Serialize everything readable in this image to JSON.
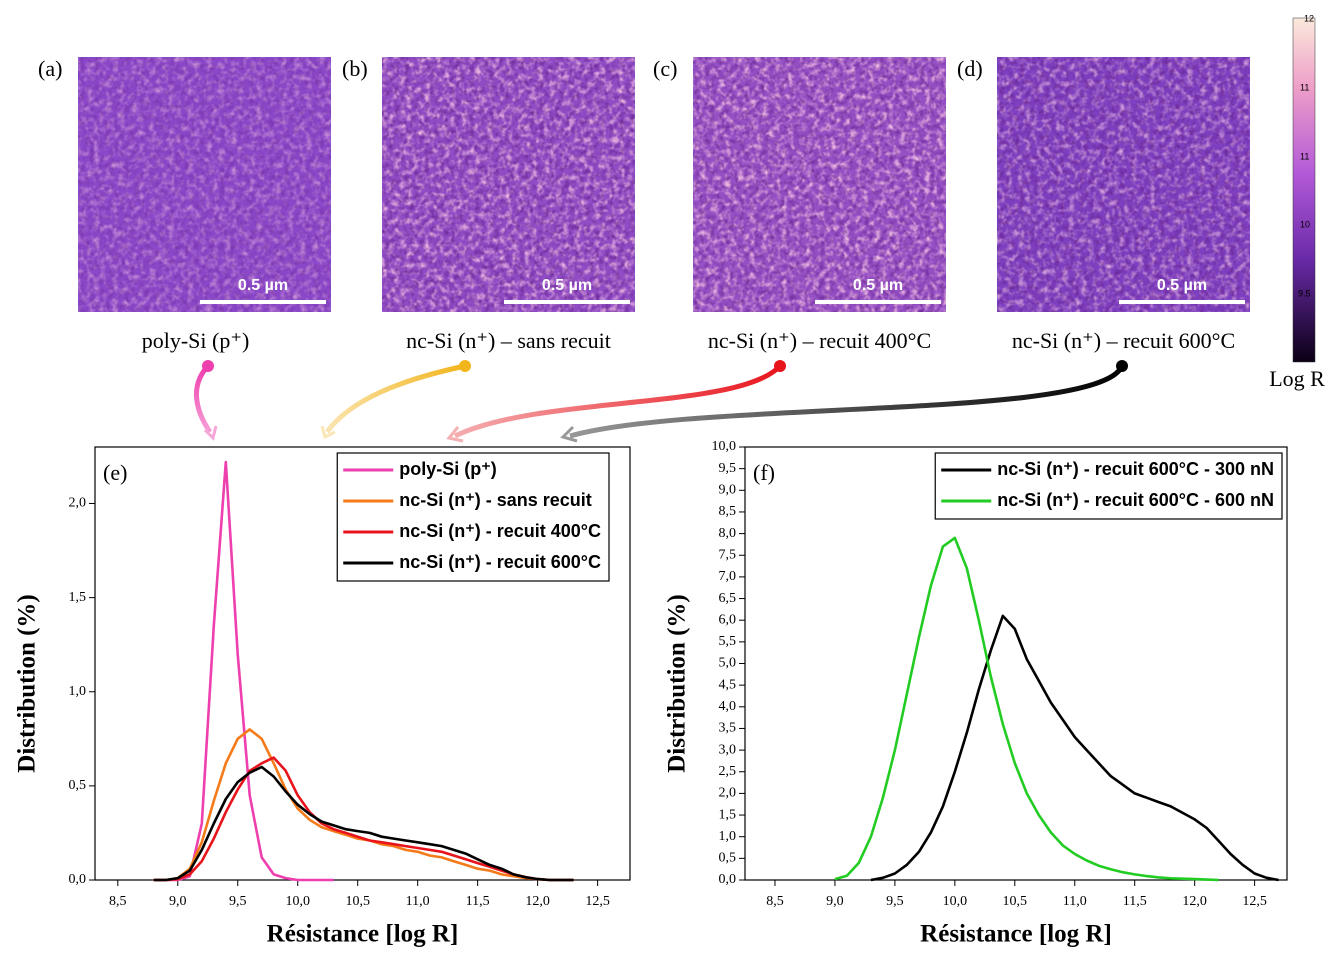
{
  "images": [
    {
      "label": "(a)",
      "scale": "0.5 µm",
      "caption": "poly-Si (p⁺)"
    },
    {
      "label": "(b)",
      "scale": "0.5 µm",
      "caption": "nc-Si (n⁺) – sans recuit"
    },
    {
      "label": "(c)",
      "scale": "0.5 µm",
      "caption": "nc-Si (n⁺) – recuit 400°C"
    },
    {
      "label": "(d)",
      "scale": "0.5 µm",
      "caption": "nc-Si (n⁺) – recuit 600°C"
    }
  ],
  "colorbar": {
    "ticks": [
      "12",
      "11",
      "11",
      "10",
      "9.5"
    ],
    "label": "Log R"
  },
  "chart_data": [
    {
      "type": "line",
      "panel_label": "(e)",
      "x_label": "Résistance [log R]",
      "y_label": "Distribution (%)",
      "x": [
        8.8,
        8.9,
        9.0,
        9.1,
        9.2,
        9.3,
        9.4,
        9.5,
        9.6,
        9.7,
        9.8,
        9.9,
        10.0,
        10.1,
        10.2,
        10.3,
        10.4,
        10.5,
        10.6,
        10.7,
        10.8,
        10.9,
        11.0,
        11.1,
        11.2,
        11.3,
        11.4,
        11.5,
        11.6,
        11.7,
        11.8,
        11.9,
        12.0,
        12.1,
        12.2,
        12.3
      ],
      "series": [
        {
          "name": "poly-Si (p⁺)",
          "color": "#ee3fae",
          "values": [
            0,
            0,
            0,
            0.02,
            0.3,
            1.35,
            2.22,
            1.2,
            0.45,
            0.12,
            0.03,
            0.01,
            0,
            0,
            0,
            0,
            null,
            null,
            null,
            null,
            null,
            null,
            null,
            null,
            null,
            null,
            null,
            null,
            null,
            null,
            null,
            null,
            null,
            null,
            null,
            null
          ]
        },
        {
          "name": "nc-Si (n⁺) - sans recuit",
          "color": "#f47a1a",
          "values": [
            0,
            0,
            0.01,
            0.06,
            0.2,
            0.42,
            0.62,
            0.75,
            0.8,
            0.75,
            0.62,
            0.48,
            0.38,
            0.32,
            0.28,
            0.26,
            0.24,
            0.22,
            0.21,
            0.19,
            0.18,
            0.16,
            0.15,
            0.13,
            0.12,
            0.1,
            0.08,
            0.06,
            0.05,
            0.03,
            0.02,
            0.01,
            0.005,
            0,
            0,
            0
          ]
        },
        {
          "name": "nc-Si (n⁺) - recuit 400°C",
          "color": "#e8141c",
          "values": [
            0,
            0,
            0.005,
            0.03,
            0.1,
            0.22,
            0.36,
            0.48,
            0.58,
            0.62,
            0.65,
            0.58,
            0.45,
            0.36,
            0.3,
            0.27,
            0.25,
            0.23,
            0.21,
            0.2,
            0.19,
            0.18,
            0.17,
            0.16,
            0.15,
            0.13,
            0.11,
            0.09,
            0.07,
            0.05,
            0.03,
            0.015,
            0.005,
            0,
            0,
            0
          ]
        },
        {
          "name": "nc-Si (n⁺) - recuit 600°C",
          "color": "#000000",
          "values": [
            0,
            0,
            0.01,
            0.05,
            0.16,
            0.3,
            0.43,
            0.52,
            0.57,
            0.6,
            0.55,
            0.47,
            0.4,
            0.35,
            0.31,
            0.29,
            0.27,
            0.26,
            0.25,
            0.23,
            0.22,
            0.21,
            0.2,
            0.19,
            0.18,
            0.16,
            0.14,
            0.11,
            0.08,
            0.06,
            0.03,
            0.015,
            0.005,
            0,
            0,
            0
          ]
        }
      ],
      "xlim": [
        8.31,
        12.77
      ],
      "ylim": [
        0,
        2.3
      ],
      "xticks": [
        {
          "value": 8.5,
          "label": "8,5"
        },
        {
          "value": 9.0,
          "label": "9,0"
        },
        {
          "value": 9.5,
          "label": "9,5"
        },
        {
          "value": 10.0,
          "label": "10,0"
        },
        {
          "value": 10.5,
          "label": "10,5"
        },
        {
          "value": 11.0,
          "label": "11,0"
        },
        {
          "value": 11.5,
          "label": "11,5"
        },
        {
          "value": 12.0,
          "label": "12,0"
        },
        {
          "value": 12.5,
          "label": "12,5"
        }
      ],
      "yticks": [
        {
          "value": 0,
          "label": "0,0"
        },
        {
          "value": 0.5,
          "label": "0,5"
        },
        {
          "value": 1.0,
          "label": "1,0"
        },
        {
          "value": 1.5,
          "label": "1,5"
        },
        {
          "value": 2.0,
          "label": "2,0"
        }
      ],
      "legend": "upper right"
    },
    {
      "type": "line",
      "panel_label": "(f)",
      "x_label": "Résistance [log R]",
      "y_label": "Distribution (%)",
      "x": [
        9.0,
        9.1,
        9.2,
        9.3,
        9.4,
        9.5,
        9.6,
        9.7,
        9.8,
        9.9,
        10.0,
        10.1,
        10.2,
        10.3,
        10.4,
        10.5,
        10.6,
        10.7,
        10.8,
        10.9,
        11.0,
        11.1,
        11.2,
        11.3,
        11.4,
        11.5,
        11.6,
        11.7,
        11.8,
        11.9,
        12.0,
        12.1,
        12.2,
        12.3,
        12.4,
        12.5,
        12.6,
        12.7
      ],
      "series": [
        {
          "name": "nc-Si (n⁺) - recuit 600°C - 300 nN",
          "color": "#000000",
          "values": [
            null,
            null,
            null,
            0,
            0.05,
            0.15,
            0.35,
            0.65,
            1.1,
            1.7,
            2.5,
            3.4,
            4.4,
            5.3,
            6.1,
            5.8,
            5.1,
            4.6,
            4.1,
            3.7,
            3.3,
            3.0,
            2.7,
            2.4,
            2.2,
            2.0,
            1.9,
            1.8,
            1.7,
            1.55,
            1.4,
            1.2,
            0.9,
            0.6,
            0.35,
            0.15,
            0.05,
            0
          ]
        },
        {
          "name": "nc-Si (n⁺) - recuit 600°C - 600 nN",
          "color": "#22cc22",
          "values": [
            0.02,
            0.1,
            0.4,
            1.0,
            1.9,
            3.0,
            4.3,
            5.6,
            6.8,
            7.7,
            7.9,
            7.2,
            6.0,
            4.7,
            3.6,
            2.7,
            2.0,
            1.5,
            1.1,
            0.8,
            0.6,
            0.45,
            0.33,
            0.25,
            0.18,
            0.13,
            0.09,
            0.06,
            0.04,
            0.03,
            0.02,
            0.01,
            0,
            null,
            null,
            null,
            null,
            null
          ]
        }
      ],
      "xlim": [
        8.25,
        12.77
      ],
      "ylim": [
        0,
        10
      ],
      "xticks": [
        {
          "value": 8.5,
          "label": "8,5"
        },
        {
          "value": 9.0,
          "label": "9,0"
        },
        {
          "value": 9.5,
          "label": "9,5"
        },
        {
          "value": 10.0,
          "label": "10,0"
        },
        {
          "value": 10.5,
          "label": "10,5"
        },
        {
          "value": 11.0,
          "label": "11,0"
        },
        {
          "value": 11.5,
          "label": "11,5"
        },
        {
          "value": 12.0,
          "label": "12,0"
        },
        {
          "value": 12.5,
          "label": "12,5"
        }
      ],
      "yticks": [
        {
          "value": 0,
          "label": "0,0"
        },
        {
          "value": 0.5,
          "label": "0,5"
        },
        {
          "value": 1.0,
          "label": "1,0"
        },
        {
          "value": 1.5,
          "label": "1,5"
        },
        {
          "value": 2.0,
          "label": "2,0"
        },
        {
          "value": 2.5,
          "label": "2,5"
        },
        {
          "value": 3.0,
          "label": "3,0"
        },
        {
          "value": 3.5,
          "label": "3,5"
        },
        {
          "value": 4.0,
          "label": "4,0"
        },
        {
          "value": 4.5,
          "label": "4,5"
        },
        {
          "value": 5.0,
          "label": "5,0"
        },
        {
          "value": 5.5,
          "label": "5,5"
        },
        {
          "value": 6.0,
          "label": "6,0"
        },
        {
          "value": 6.5,
          "label": "6,5"
        },
        {
          "value": 7.0,
          "label": "7,0"
        },
        {
          "value": 7.5,
          "label": "7,5"
        },
        {
          "value": 8.0,
          "label": "8,0"
        },
        {
          "value": 8.5,
          "label": "8,5"
        },
        {
          "value": 9.0,
          "label": "9,0"
        },
        {
          "value": 9.5,
          "label": "9,5"
        },
        {
          "value": 10.0,
          "label": "10,0"
        }
      ],
      "legend": "upper right"
    }
  ]
}
